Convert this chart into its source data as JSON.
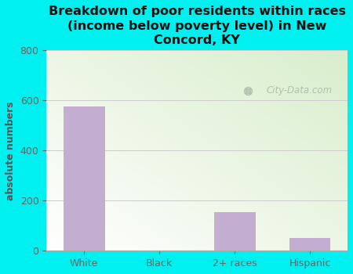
{
  "categories": [
    "White",
    "Black",
    "2+ races",
    "Hispanic"
  ],
  "values": [
    575,
    0,
    155,
    50
  ],
  "bar_color": "#c4aed0",
  "title": "Breakdown of poor residents within races\n(income below poverty level) in New\nConcord, KY",
  "ylabel": "absolute numbers",
  "ylim": [
    0,
    800
  ],
  "yticks": [
    0,
    200,
    400,
    600,
    800
  ],
  "background_outer": "#00f0f0",
  "plot_bg_color1": "#ffffff",
  "plot_bg_color2": "#d8eecc",
  "title_color": "#111111",
  "axis_label_color": "#555555",
  "tick_color": "#666666",
  "watermark_text": "City-Data.com",
  "watermark_color": "#aabbaa",
  "title_fontsize": 11.5,
  "ylabel_fontsize": 9,
  "tick_fontsize": 9
}
